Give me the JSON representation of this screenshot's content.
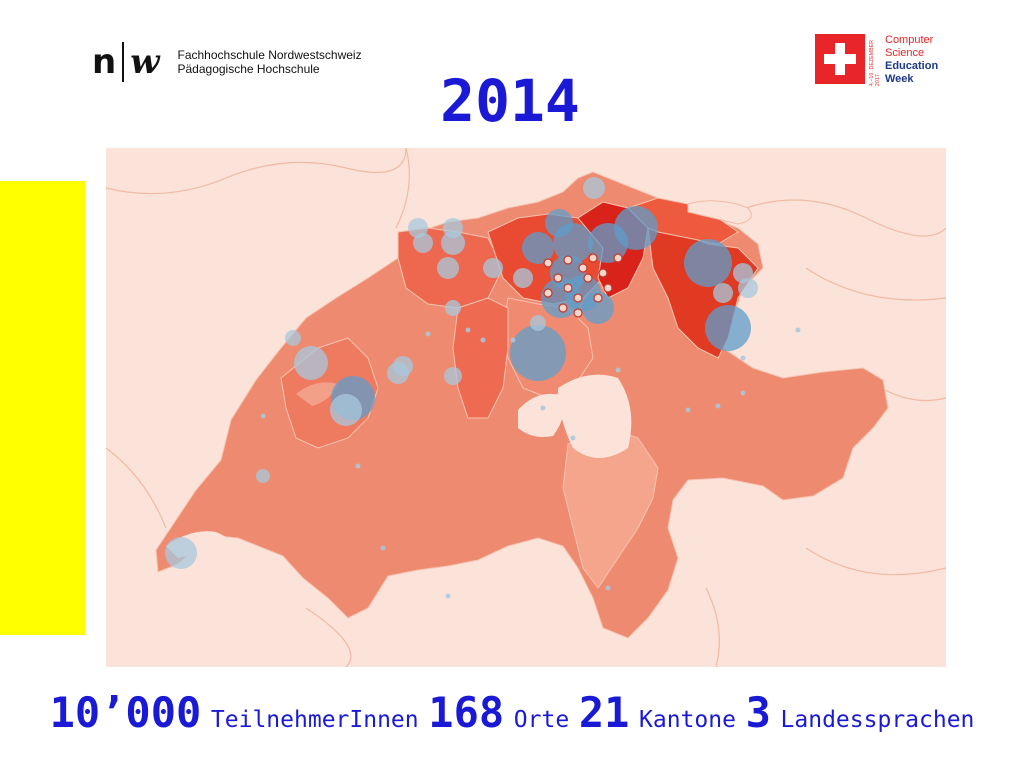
{
  "header": {
    "logo_mark_n": "n",
    "logo_mark_w": "w",
    "institution_line1": "Fachhochschule Nordwestschweiz",
    "institution_line2": "Pädagogische Hochschule",
    "event_vertical_text": "4.–10. DEZEMBER 2017",
    "event_line1": "Computer",
    "event_line2": "Science",
    "event_line3": "Education",
    "event_line4": "Week",
    "year": "2014"
  },
  "map": {
    "type": "bubble-map",
    "region_base_color": "#ed8a70",
    "region_light_color": "#f4a58b",
    "region_medium_color": "#ee6850",
    "region_dark_color": "#e03a22",
    "region_darkest_color": "#d9221a",
    "background_color": "#fbe3d9",
    "bubble_color": "#5f9ecb",
    "bubble_light_color": "#a8c8de",
    "bubble_outline_color": "#c0392b"
  },
  "stats": {
    "participants_value": "10’000",
    "participants_label": "TeilnehmerInnen",
    "places_value": "168",
    "places_label": "Orte",
    "cantons_value": "21",
    "cantons_label": "Kantone",
    "languages_value": "3",
    "languages_label": "Landessprachen"
  },
  "colors": {
    "accent_blue": "#1a1ad6",
    "sidebar_yellow": "#ffff00",
    "swiss_red": "#e8262a"
  }
}
